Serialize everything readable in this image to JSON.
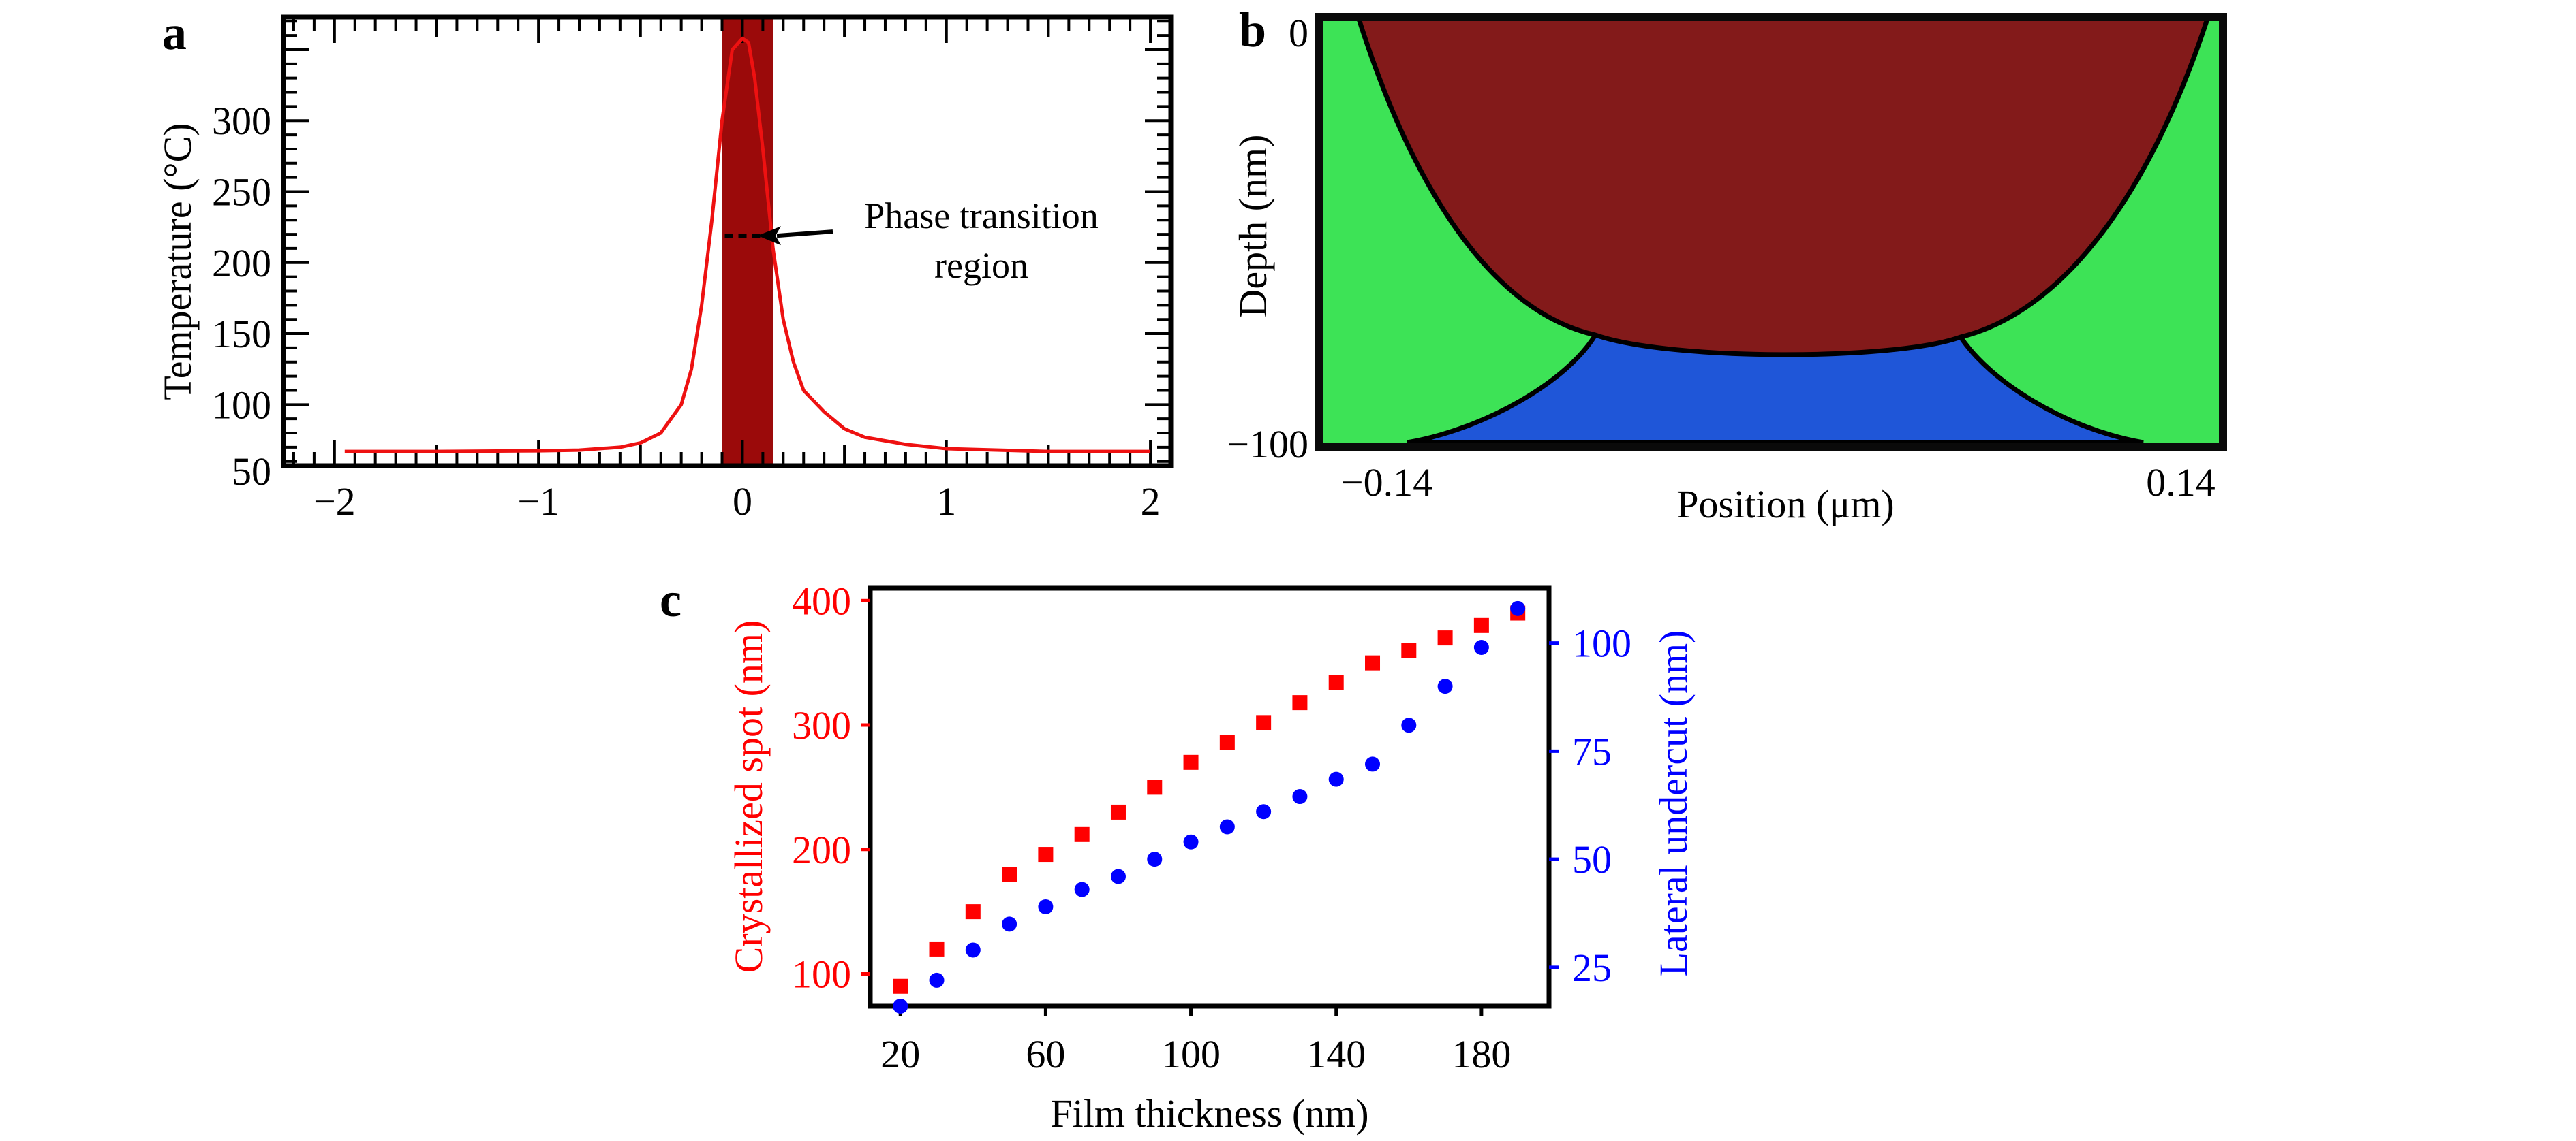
{
  "figure": {
    "panels": [
      "a",
      "b",
      "c"
    ]
  },
  "chart_data": [
    {
      "panel": "a",
      "type": "line",
      "title": "",
      "xlabel": "",
      "ylabel": "Temperature (°C)",
      "xlim": [
        -2.25,
        2.1
      ],
      "ylim": [
        57,
        373
      ],
      "xticks": [
        -2,
        -1,
        0,
        1,
        2
      ],
      "xtick_labels": [
        "−2",
        "−1",
        "0",
        "1",
        "2"
      ],
      "yticks": [
        50,
        100,
        150,
        200,
        250,
        300
      ],
      "ytick_labels": [
        "50",
        "100",
        "150",
        "200",
        "250",
        "300"
      ],
      "minor_xtick_step": 0.1,
      "minor_ytick_step": 10,
      "grid": false,
      "series": [
        {
          "name": "Temperature profile",
          "color": "#ee1111",
          "x": [
            -1.95,
            -1.5,
            -1.0,
            -0.8,
            -0.6,
            -0.5,
            -0.4,
            -0.3,
            -0.25,
            -0.2,
            -0.15,
            -0.1,
            -0.05,
            0.0,
            0.03,
            0.06,
            0.1,
            0.15,
            0.2,
            0.25,
            0.3,
            0.4,
            0.5,
            0.6,
            0.8,
            1.0,
            1.5,
            2.0
          ],
          "y": [
            67,
            67,
            67.5,
            68,
            70,
            73,
            80,
            100,
            125,
            170,
            230,
            300,
            350,
            358,
            355,
            330,
            280,
            210,
            160,
            130,
            110,
            95,
            83,
            77,
            72,
            69,
            67,
            67
          ]
        }
      ],
      "highlight_band": {
        "x_range": [
          -0.1,
          0.15
        ],
        "color": "#9b0a0a"
      },
      "annotation": {
        "line1": "Phase transition",
        "line2": "region",
        "marker_value": 219
      }
    },
    {
      "panel": "b",
      "type": "heatmap",
      "title": "",
      "xlabel": "Position (μm)",
      "ylabel": "Depth (nm)",
      "xlim": [
        -0.14,
        0.14
      ],
      "ylim": [
        -100,
        0
      ],
      "xtick_labels": [
        "−0.14",
        "0.14"
      ],
      "ytick_labels": [
        "0",
        "−100"
      ],
      "regions": [
        {
          "name": "crystallized-dome",
          "color": "#831a1a"
        },
        {
          "name": "lateral-regions",
          "color": "#3de356"
        },
        {
          "name": "bottom-region",
          "color": "#1f56d8"
        }
      ]
    },
    {
      "panel": "c",
      "type": "scatter",
      "title": "",
      "xlabel": "Film thickness (nm)",
      "ylabel": "Crystallized spot (nm)",
      "ylabel_right": "Lateral undercut (nm)",
      "xlim": [
        11.7,
        198.6
      ],
      "ylim": [
        74,
        410
      ],
      "ylim_right": [
        16,
        112.7
      ],
      "xticks": [
        20,
        60,
        100,
        140,
        180
      ],
      "yticks": [
        100,
        200,
        300,
        400
      ],
      "yticks_right": [
        25,
        50,
        75,
        100
      ],
      "grid": false,
      "x": [
        20,
        30,
        40,
        50,
        60,
        70,
        80,
        90,
        100,
        110,
        120,
        130,
        140,
        150,
        160,
        170,
        180,
        190
      ],
      "series": [
        {
          "name": "Crystallized spot",
          "axis": "left",
          "marker": "square",
          "color": "#ff0000",
          "values": [
            90,
            120,
            150,
            180,
            196,
            212,
            230,
            250,
            270,
            286,
            302,
            318,
            334,
            350,
            360,
            370,
            380,
            390
          ]
        },
        {
          "name": "Lateral undercut",
          "axis": "right",
          "marker": "circle",
          "color": "#0000ff",
          "values": [
            16,
            22,
            29,
            35,
            39,
            43,
            46,
            50,
            54,
            57.5,
            61,
            64.5,
            68.5,
            72,
            81,
            90,
            99,
            108
          ]
        }
      ]
    }
  ]
}
